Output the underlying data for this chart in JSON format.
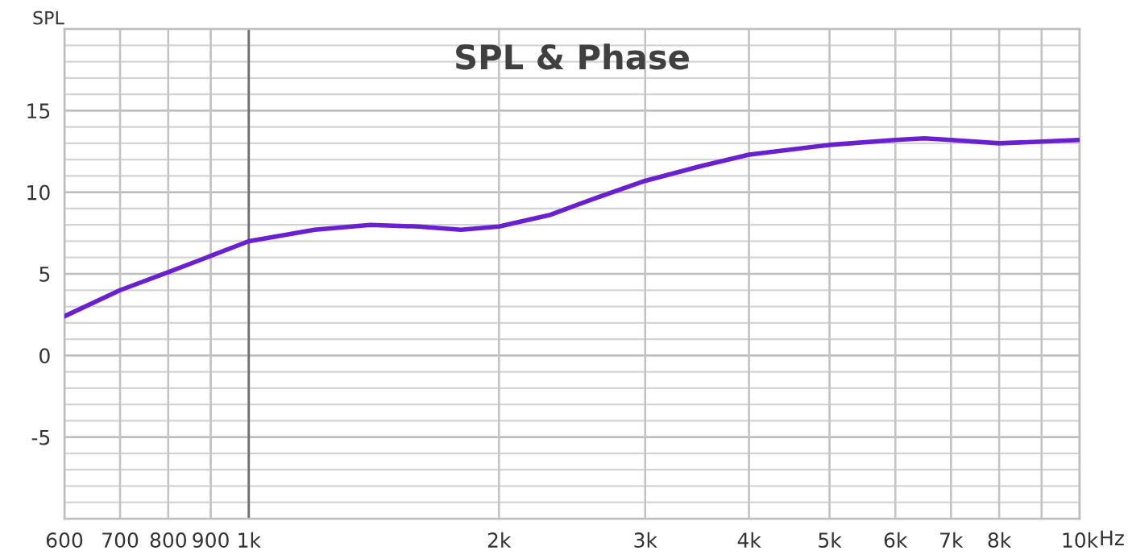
{
  "chart_data": {
    "type": "line",
    "title": "SPL & Phase",
    "ylabel": "SPL",
    "x": [
      600,
      700,
      800,
      900,
      1000,
      1200,
      1400,
      1600,
      1800,
      2000,
      2300,
      2600,
      3000,
      3500,
      4000,
      5000,
      6000,
      6500,
      7000,
      8000,
      9000,
      10000
    ],
    "series": [
      {
        "color": "#6a1fd0",
        "values": [
          2.4,
          4.0,
          5.1,
          6.1,
          7.0,
          7.7,
          8.0,
          7.9,
          7.7,
          7.9,
          8.6,
          9.6,
          10.7,
          11.6,
          12.3,
          12.9,
          13.2,
          13.3,
          13.2,
          13.0,
          13.1,
          13.2
        ]
      }
    ],
    "log": "x",
    "xlim": [
      600,
      10000
    ],
    "ylim": [
      -10,
      20
    ],
    "xticks": [
      600,
      700,
      800,
      900,
      {
        "value": 1000,
        "label": "1k"
      },
      {
        "value": 2000,
        "label": "2k"
      },
      {
        "value": 3000,
        "label": "3k"
      },
      {
        "value": 4000,
        "label": "4k"
      },
      {
        "value": 5000,
        "label": "5k"
      },
      {
        "value": 6000,
        "label": "6k"
      },
      {
        "value": 7000,
        "label": "7k"
      },
      {
        "value": 8000,
        "label": "8k"
      },
      {
        "value": 9000,
        "label": null
      },
      {
        "value": 10000,
        "label": "10k"
      }
    ],
    "xlabel": "Hz",
    "yticks": [
      {
        "value": -9,
        "label": null
      },
      {
        "value": -8,
        "label": null
      },
      {
        "value": -7,
        "label": null
      },
      {
        "value": -6,
        "label": null
      },
      -5,
      {
        "value": -4,
        "label": null
      },
      {
        "value": -3,
        "label": null
      },
      {
        "value": -2,
        "label": null
      },
      {
        "value": -1,
        "label": null
      },
      0,
      {
        "value": 1,
        "label": null
      },
      {
        "value": 2,
        "label": null
      },
      {
        "value": 3,
        "label": null
      },
      {
        "value": 4,
        "label": null
      },
      5,
      {
        "value": 6,
        "label": null
      },
      {
        "value": 7,
        "label": null
      },
      {
        "value": 8,
        "label": null
      },
      {
        "value": 9,
        "label": null
      },
      10,
      {
        "value": 11,
        "label": null
      },
      {
        "value": 12,
        "label": null
      },
      {
        "value": 13,
        "label": null
      },
      {
        "value": 14,
        "label": null
      },
      15,
      {
        "value": 16,
        "label": null
      },
      {
        "value": 17,
        "label": null
      },
      {
        "value": 18,
        "label": null
      },
      {
        "value": 19,
        "label": null
      }
    ],
    "grid": true,
    "ref_lines": [
      {
        "axis": "x",
        "value": 1000,
        "color": "#707070"
      }
    ],
    "line_style": "solid",
    "marker": "none"
  }
}
